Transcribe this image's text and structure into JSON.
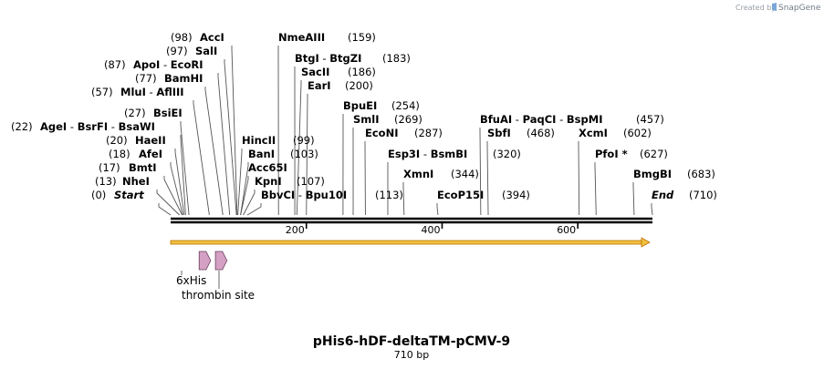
{
  "credit": {
    "prefix": "Created by",
    "brand": "SnapGene"
  },
  "sequence": {
    "name": "pHis6-hDF-deltaTM-pCMV-9",
    "length_label": "710 bp",
    "length": 710
  },
  "colors": {
    "backbone": "#000000",
    "orf_fill": "#f0c040",
    "orf_edge": "#c07000",
    "feature_fill": "#d4a0c4",
    "feature_edge": "#6a3f5c",
    "connector": "#555555"
  },
  "ticks": [
    {
      "pos": 200,
      "label": "200"
    },
    {
      "pos": 400,
      "label": "400"
    },
    {
      "pos": 600,
      "label": "600"
    }
  ],
  "orf": {
    "start": 1,
    "end": 710,
    "direction": "forward"
  },
  "features": [
    {
      "name": "6xHis",
      "start": 42,
      "end": 59,
      "shape": "arrow"
    },
    {
      "name": "thrombin site",
      "start": 66,
      "end": 83,
      "shape": "arrow"
    }
  ],
  "sites": [
    {
      "id": "start",
      "parts": [
        "Start"
      ],
      "kind": "boundary",
      "pos_label": "(0)",
      "pos": 0
    },
    {
      "id": "nhei",
      "parts": [
        "NheI"
      ],
      "kind": "enzyme",
      "pos_label": "(13)",
      "pos": 13
    },
    {
      "id": "bmti",
      "parts": [
        "BmtI"
      ],
      "kind": "enzyme",
      "pos_label": "(17)",
      "pos": 17
    },
    {
      "id": "afei",
      "parts": [
        "AfeI"
      ],
      "kind": "enzyme",
      "pos_label": "(18)",
      "pos": 18
    },
    {
      "id": "haeii",
      "parts": [
        "HaeII"
      ],
      "kind": "enzyme",
      "pos_label": "(20)",
      "pos": 20
    },
    {
      "id": "agei",
      "parts": [
        "AgeI",
        "BsrFI",
        "BsaWI"
      ],
      "kind": "enzyme",
      "pos_label": "(22)",
      "pos": 22
    },
    {
      "id": "bsiei",
      "parts": [
        "BsiEI"
      ],
      "kind": "enzyme",
      "pos_label": "(27)",
      "pos": 27
    },
    {
      "id": "mlui",
      "parts": [
        "MluI",
        "AflIII"
      ],
      "kind": "enzyme",
      "pos_label": "(57)",
      "pos": 57
    },
    {
      "id": "bamhi",
      "parts": [
        "BamHI"
      ],
      "kind": "enzyme",
      "pos_label": "(77)",
      "pos": 77
    },
    {
      "id": "apoi",
      "parts": [
        "ApoI",
        "EcoRI"
      ],
      "kind": "enzyme",
      "pos_label": "(87)",
      "pos": 87
    },
    {
      "id": "sali",
      "parts": [
        "SalI"
      ],
      "kind": "enzyme",
      "pos_label": "(97)",
      "pos": 97
    },
    {
      "id": "acci",
      "parts": [
        "AccI"
      ],
      "kind": "enzyme",
      "pos_label": "(98)",
      "pos": 98
    },
    {
      "id": "hincii",
      "parts": [
        "HincII"
      ],
      "kind": "enzyme",
      "pos_label": "(99)",
      "pos": 99
    },
    {
      "id": "bani",
      "parts": [
        "BanI"
      ],
      "kind": "enzyme",
      "pos_label": "(103)",
      "pos": 103
    },
    {
      "id": "acc65i",
      "parts": [
        "Acc65I"
      ],
      "kind": "enzyme",
      "pos_label": "",
      "pos": 103
    },
    {
      "id": "kpni",
      "parts": [
        "KpnI"
      ],
      "kind": "enzyme",
      "pos_label": "(107)",
      "pos": 107
    },
    {
      "id": "bbvci",
      "parts": [
        "BbvCI",
        "Bpu10I"
      ],
      "kind": "enzyme",
      "pos_label": "(113)",
      "pos": 113
    },
    {
      "id": "nmeaiii",
      "parts": [
        "NmeAIII"
      ],
      "kind": "enzyme",
      "pos_label": "(159)",
      "pos": 159
    },
    {
      "id": "btgi",
      "parts": [
        "BtgI",
        "BtgZI"
      ],
      "kind": "enzyme",
      "pos_label": "(183)",
      "pos": 183
    },
    {
      "id": "sacii",
      "parts": [
        "SacII"
      ],
      "kind": "enzyme",
      "pos_label": "(186)",
      "pos": 186
    },
    {
      "id": "eari",
      "parts": [
        "EarI"
      ],
      "kind": "enzyme",
      "pos_label": "(200)",
      "pos": 200
    },
    {
      "id": "bpuei",
      "parts": [
        "BpuEI"
      ],
      "kind": "enzyme",
      "pos_label": "(254)",
      "pos": 254
    },
    {
      "id": "smli",
      "parts": [
        "SmlI"
      ],
      "kind": "enzyme",
      "pos_label": "(269)",
      "pos": 269
    },
    {
      "id": "econi",
      "parts": [
        "EcoNI"
      ],
      "kind": "enzyme",
      "pos_label": "(287)",
      "pos": 287
    },
    {
      "id": "esp3i",
      "parts": [
        "Esp3I",
        "BsmBI"
      ],
      "kind": "enzyme",
      "pos_label": "(320)",
      "pos": 320
    },
    {
      "id": "xmni",
      "parts": [
        "XmnI"
      ],
      "kind": "enzyme",
      "pos_label": "(344)",
      "pos": 344
    },
    {
      "id": "ecop15i",
      "parts": [
        "EcoP15I"
      ],
      "kind": "enzyme",
      "pos_label": "(394)",
      "pos": 394
    },
    {
      "id": "bfuai",
      "parts": [
        "BfuAI",
        "PaqCI",
        "BspMI"
      ],
      "kind": "enzyme",
      "pos_label": "(457)",
      "pos": 457
    },
    {
      "id": "sbfi",
      "parts": [
        "SbfI"
      ],
      "kind": "enzyme",
      "pos_label": "(468)",
      "pos": 468
    },
    {
      "id": "xcmi",
      "parts": [
        "XcmI"
      ],
      "kind": "enzyme",
      "pos_label": "(602)",
      "pos": 602
    },
    {
      "id": "pfoi",
      "parts": [
        "PfoI *"
      ],
      "kind": "enzyme",
      "pos_label": "(627)",
      "pos": 627
    },
    {
      "id": "bmgbi",
      "parts": [
        "BmgBI"
      ],
      "kind": "enzyme",
      "pos_label": "(683)",
      "pos": 683
    },
    {
      "id": "end",
      "parts": [
        "End"
      ],
      "kind": "boundary",
      "pos_label": "(710)",
      "pos": 710
    }
  ]
}
